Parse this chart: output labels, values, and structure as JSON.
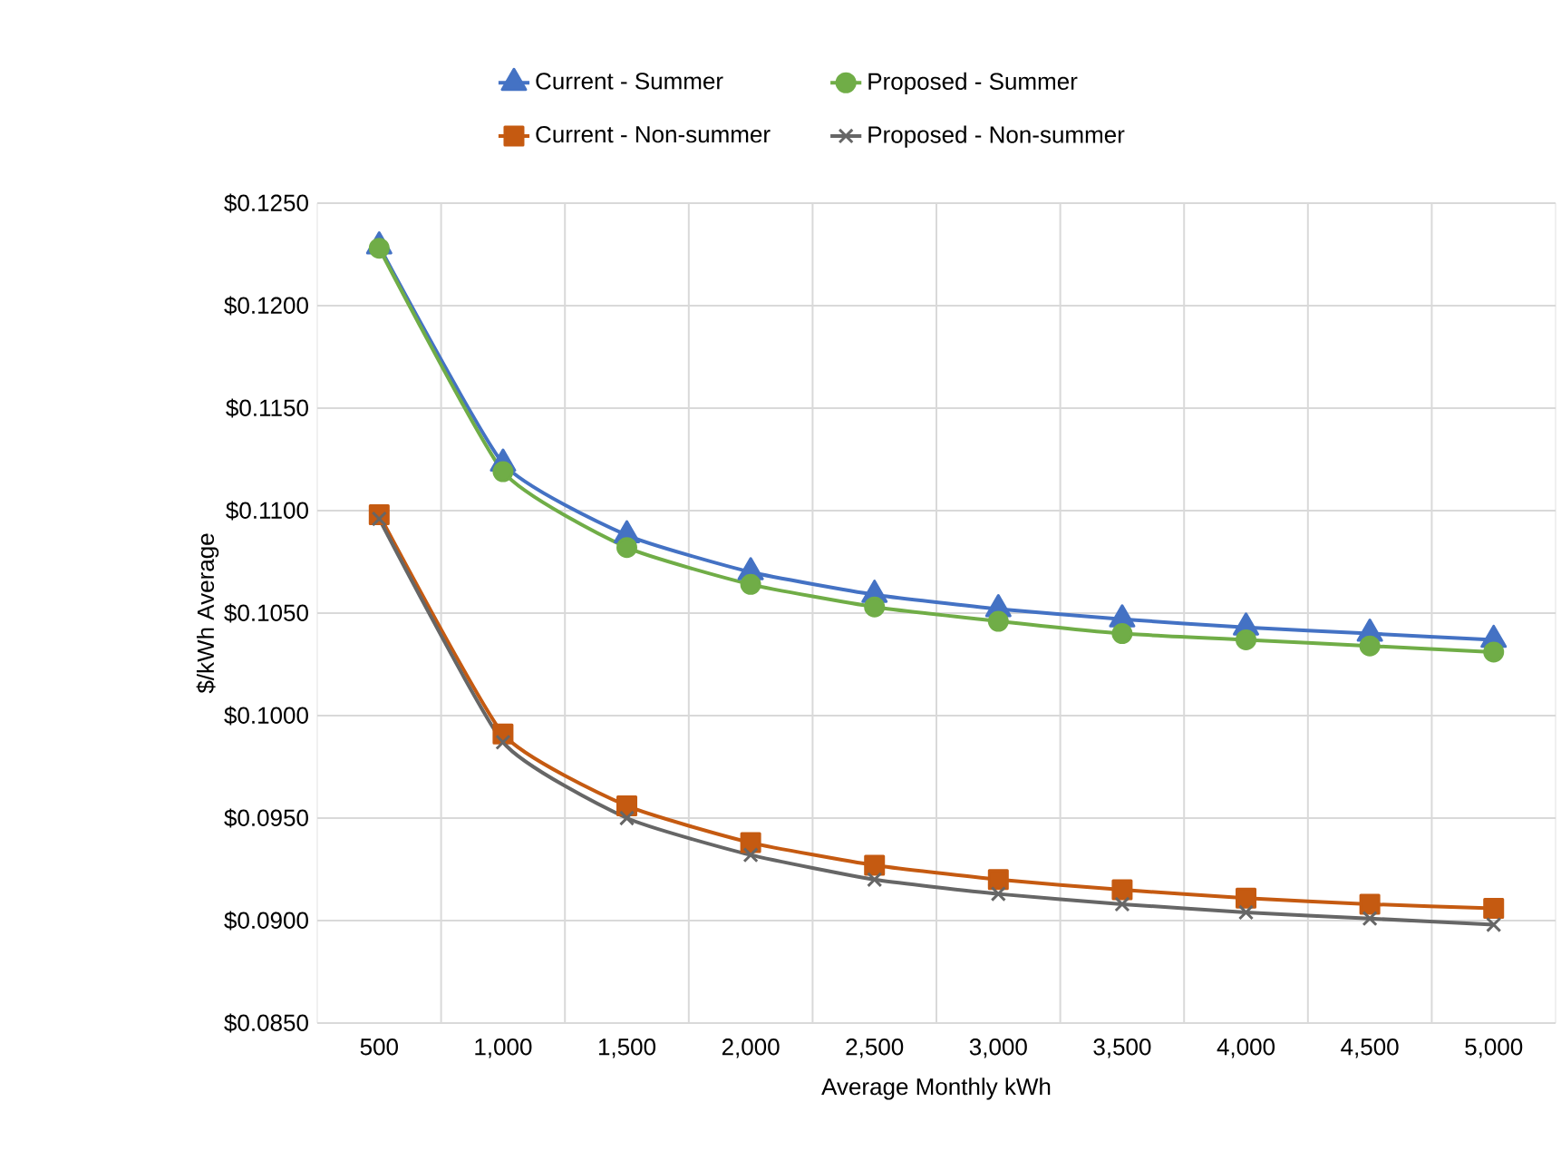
{
  "chart_data": {
    "type": "line",
    "xlabel": "Average Monthly kWh",
    "ylabel": "$/kWh Average",
    "categories": [
      "500",
      "1,000",
      "1,500",
      "2,000",
      "2,500",
      "3,000",
      "3,500",
      "4,000",
      "4,500",
      "5,000"
    ],
    "ylim": [
      0.085,
      0.125
    ],
    "yticks": [
      {
        "value": 0.085,
        "label": "$0.0850"
      },
      {
        "value": 0.09,
        "label": "$0.0900"
      },
      {
        "value": 0.095,
        "label": "$0.0950"
      },
      {
        "value": 0.1,
        "label": "$0.1000"
      },
      {
        "value": 0.105,
        "label": "$0.1050"
      },
      {
        "value": 0.11,
        "label": "$0.1100"
      },
      {
        "value": 0.115,
        "label": "$0.1150"
      },
      {
        "value": 0.12,
        "label": "$0.1200"
      },
      {
        "value": 0.125,
        "label": "$0.1250"
      }
    ],
    "grid": true,
    "legend": "top",
    "line_style": "solid",
    "series": [
      {
        "name": "Current - Summer",
        "color": "#4472c4",
        "marker": "triangle",
        "values": [
          0.1229,
          0.1123,
          0.1088,
          0.107,
          0.1059,
          0.1052,
          0.1047,
          0.1043,
          0.104,
          0.1037
        ]
      },
      {
        "name": "Proposed - Summer",
        "color": "#70ad47",
        "marker": "circle",
        "values": [
          0.1228,
          0.1119,
          0.1082,
          0.1064,
          0.1053,
          0.1046,
          0.104,
          0.1037,
          0.1034,
          0.1031
        ]
      },
      {
        "name": "Current - Non-summer",
        "color": "#c55a11",
        "marker": "square",
        "values": [
          0.1098,
          0.0991,
          0.0956,
          0.0938,
          0.0927,
          0.092,
          0.0915,
          0.0911,
          0.0908,
          0.0906
        ]
      },
      {
        "name": "Proposed - Non-summer",
        "color": "#666666",
        "marker": "cross",
        "values": [
          0.1096,
          0.0987,
          0.095,
          0.0932,
          0.092,
          0.0913,
          0.0908,
          0.0904,
          0.0901,
          0.0898
        ]
      }
    ]
  }
}
